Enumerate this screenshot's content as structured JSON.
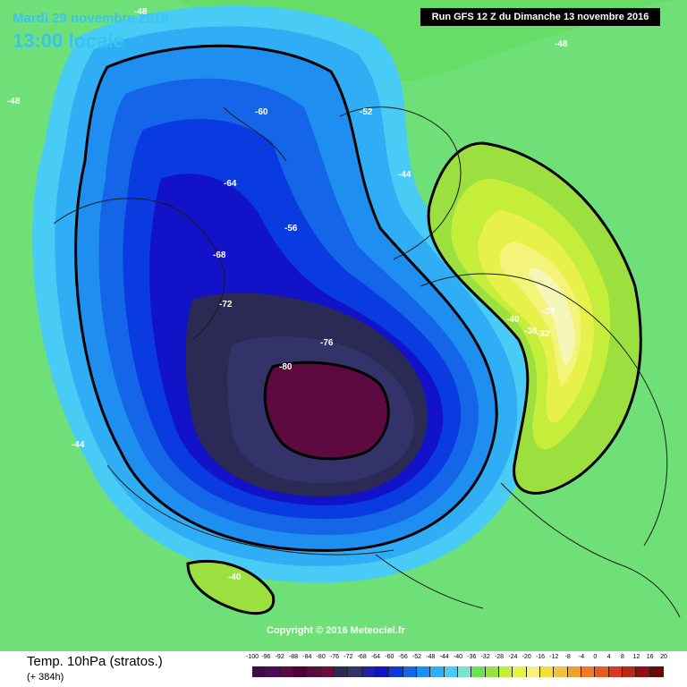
{
  "header": {
    "date": "Mardi 29 novembre 2016",
    "time": "13:00 locale",
    "run": "Run GFS 12 Z du Dimanche 13 novembre 2016"
  },
  "copyright": "Copyright © 2016 Meteociel.fr",
  "footer": {
    "title": "Temp. 10hPa (stratos.)",
    "lead": "(+ 384h)"
  },
  "scale": {
    "labels": [
      "-100",
      "-96",
      "-92",
      "-88",
      "-84",
      "-80",
      "-76",
      "-72",
      "-68",
      "-64",
      "-60",
      "-56",
      "-52",
      "-48",
      "-44",
      "-40",
      "-36",
      "-32",
      "-28",
      "-24",
      "-20",
      "-16",
      "-12",
      "-8",
      "-4",
      "0",
      "4",
      "8",
      "12",
      "16",
      "20"
    ],
    "colors": [
      "#3a0a4a",
      "#4a0a55",
      "#5a0a45",
      "#500030",
      "#5c0a40",
      "#6b0b3e",
      "#2a2a55",
      "#33336a",
      "#1f1fa8",
      "#1212c8",
      "#0a3be0",
      "#1565e8",
      "#1e8ef0",
      "#30aef5",
      "#48ccf5",
      "#7be3c8",
      "#6fe05c",
      "#9be03e",
      "#c4ee3a",
      "#e8f04a",
      "#f4f47a",
      "#f6de3c",
      "#f2c23a",
      "#f0a030",
      "#ec7c28",
      "#e85a20",
      "#d83a20",
      "#b82818",
      "#901010",
      "#6b0808"
    ]
  },
  "contour_labels": [
    {
      "text": "-48",
      "region": "top-left"
    },
    {
      "text": "-48",
      "region": "top-right"
    },
    {
      "text": "-48",
      "region": "left"
    },
    {
      "text": "-60",
      "region": "north-canada"
    },
    {
      "text": "-52",
      "region": "greenland"
    },
    {
      "text": "-64",
      "region": "canada"
    },
    {
      "text": "-68",
      "region": "canada"
    },
    {
      "text": "-72",
      "region": "arctic"
    },
    {
      "text": "-76",
      "region": "arctic"
    },
    {
      "text": "-80",
      "region": "pole"
    },
    {
      "text": "-56",
      "region": "atlantic"
    },
    {
      "text": "-44",
      "region": "atlantic"
    },
    {
      "text": "-40",
      "region": "europe"
    },
    {
      "text": "-36",
      "region": "russia"
    },
    {
      "text": "-32",
      "region": "russia"
    },
    {
      "text": "-28",
      "region": "siberia"
    },
    {
      "text": "-44",
      "region": "pacific"
    },
    {
      "text": "-40",
      "region": "pacific"
    }
  ]
}
